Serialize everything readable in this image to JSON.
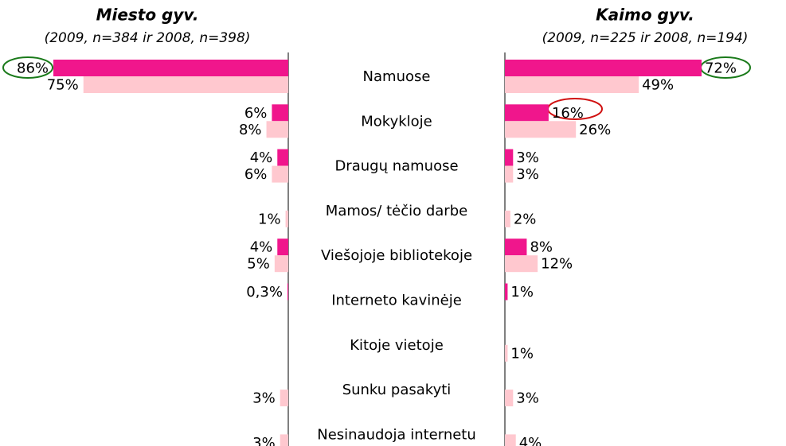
{
  "chart_data": {
    "type": "butterfly-bar",
    "categories": [
      "Namuose",
      "Mokykloje",
      "Draugų namuose",
      "Mamos/ tėčio darbe",
      "Viešojoje bibliotekoje",
      "Interneto kavinėje",
      "Kitoje vietoje",
      "Sunku pasakyti",
      "Nesinaudoja internetu"
    ],
    "panels": [
      {
        "side": "left",
        "title": "Miesto gyv.",
        "subtitle": "(2009, n=384 ir 2008, n=398)",
        "series": [
          {
            "color": "#f0168c",
            "values": [
              86,
              6,
              4,
              null,
              4,
              0.3,
              null,
              null,
              null
            ],
            "value_labels": [
              "86%",
              "6%",
              "4%",
              null,
              "4%",
              "0,3%",
              null,
              null,
              null
            ]
          },
          {
            "color": "#ffc8cf",
            "values": [
              75,
              8,
              6,
              1,
              5,
              null,
              null,
              3,
              3
            ],
            "value_labels": [
              "75%",
              "8%",
              "6%",
              "1%",
              "5%",
              null,
              null,
              "3%",
              "3%"
            ]
          }
        ]
      },
      {
        "side": "right",
        "title": "Kaimo gyv.",
        "subtitle": "(2009, n=225 ir 2008, n=194)",
        "series": [
          {
            "color": "#f0168c",
            "values": [
              72,
              16,
              3,
              null,
              8,
              1,
              null,
              null,
              null
            ],
            "value_labels": [
              "72%",
              "16%",
              "3%",
              null,
              "8%",
              "1%",
              null,
              null,
              null
            ]
          },
          {
            "color": "#ffc8cf",
            "values": [
              49,
              26,
              3,
              2,
              12,
              null,
              1,
              3,
              4
            ],
            "value_labels": [
              "49%",
              "26%",
              "3%",
              "2%",
              "12%",
              null,
              "1%",
              "3%",
              "4%"
            ]
          }
        ]
      }
    ]
  }
}
